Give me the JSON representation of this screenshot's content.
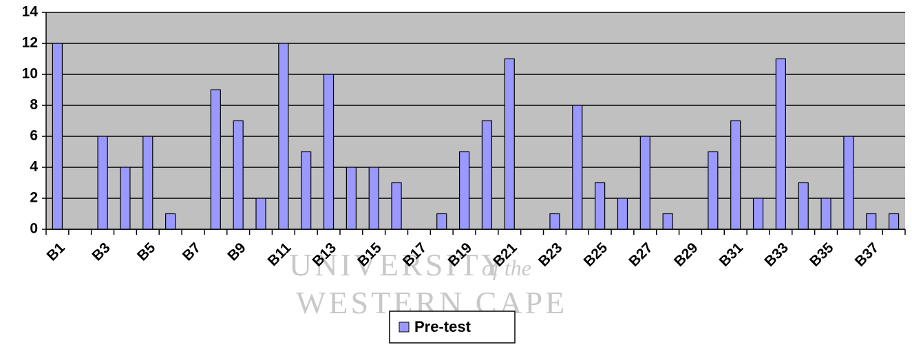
{
  "chart_data": {
    "type": "bar",
    "categories": [
      "B1",
      null,
      "B3",
      null,
      "B5",
      null,
      "B7",
      null,
      "B9",
      null,
      "B11",
      null,
      "B13",
      null,
      "B15",
      null,
      "B17",
      null,
      "B19",
      null,
      "B21",
      null,
      "B23",
      null,
      "B25",
      null,
      "B27",
      null,
      "B29",
      null,
      "B31",
      null,
      "B33",
      null,
      "B35",
      null,
      "B37",
      null
    ],
    "series": [
      {
        "name": "Pre-test",
        "color": "#9999ff",
        "values": [
          12,
          0,
          6,
          4,
          6,
          1,
          0,
          9,
          7,
          2,
          12,
          5,
          10,
          4,
          4,
          3,
          0,
          1,
          5,
          7,
          11,
          0,
          1,
          8,
          3,
          2,
          6,
          1,
          0,
          5,
          7,
          2,
          11,
          3,
          2,
          6,
          1,
          1
        ]
      }
    ],
    "ylim": [
      0,
      14
    ],
    "yticks": [
      0,
      2,
      4,
      6,
      8,
      10,
      12,
      14
    ],
    "grid": true,
    "background": "#c0c0c0",
    "watermark": [
      "UNIVERSITY",
      "of the",
      "WESTERN CAPE"
    ],
    "legend": "bottom"
  }
}
